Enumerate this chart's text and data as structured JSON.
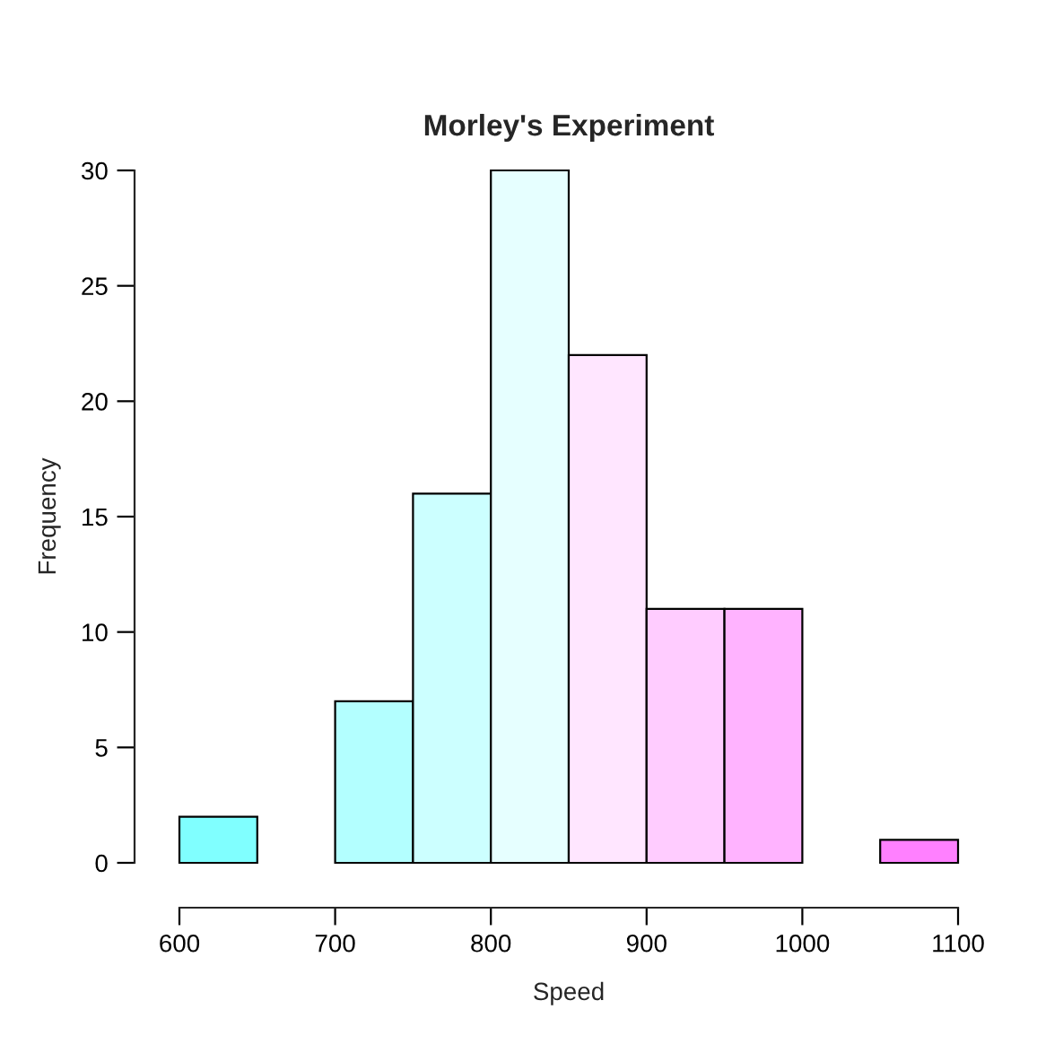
{
  "chart_data": {
    "type": "histogram",
    "title": "Morley's Experiment",
    "xlabel": "Speed",
    "ylabel": "Frequency",
    "bins": [
      600,
      650,
      700,
      750,
      800,
      850,
      900,
      950,
      1000,
      1050,
      1100
    ],
    "values": [
      2,
      0,
      7,
      16,
      30,
      22,
      11,
      11,
      0,
      1
    ],
    "colors": [
      "#80ffff",
      "#99ffff",
      "#b3ffff",
      "#ccffff",
      "#e6ffff",
      "#ffe6ff",
      "#ffccff",
      "#ffb3ff",
      "#ff99ff",
      "#ff80ff"
    ],
    "xlim": [
      600,
      1100
    ],
    "ylim": [
      0,
      30
    ],
    "xticks": [
      600,
      700,
      800,
      900,
      1000,
      1100
    ],
    "yticks": [
      0,
      5,
      10,
      15,
      20,
      25,
      30
    ],
    "grid": false
  }
}
